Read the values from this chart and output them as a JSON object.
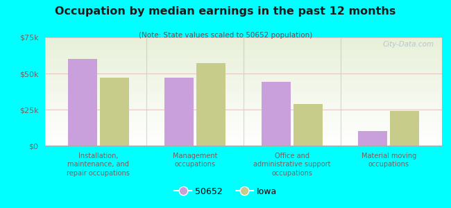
{
  "title": "Occupation by median earnings in the past 12 months",
  "subtitle": "(Note: State values scaled to 50652 population)",
  "categories": [
    "Installation,\nmaintenance, and\nrepair occupations",
    "Management\noccupations",
    "Office and\nadministrative support\noccupations",
    "Material moving\noccupations"
  ],
  "values_50652": [
    60000,
    47000,
    44000,
    10000
  ],
  "values_iowa": [
    47000,
    57000,
    29000,
    24000
  ],
  "color_50652": "#c9a0dc",
  "color_iowa": "#c8cc8a",
  "ylim": [
    0,
    75000
  ],
  "yticks": [
    0,
    25000,
    50000,
    75000
  ],
  "ytick_labels": [
    "$0",
    "$25k",
    "$50k",
    "$75k"
  ],
  "background_outer": "#00ffff",
  "background_inner_top": "#ffffff",
  "background_inner_bottom": "#e8f0d8",
  "legend_labels": [
    "50652",
    "Iowa"
  ],
  "watermark": "City-Data.com",
  "title_color": "#1a1a1a",
  "subtitle_color": "#555555",
  "axis_text_color": "#666666",
  "grid_color": "#e0c8c8",
  "divider_color": "#b0c8b0"
}
